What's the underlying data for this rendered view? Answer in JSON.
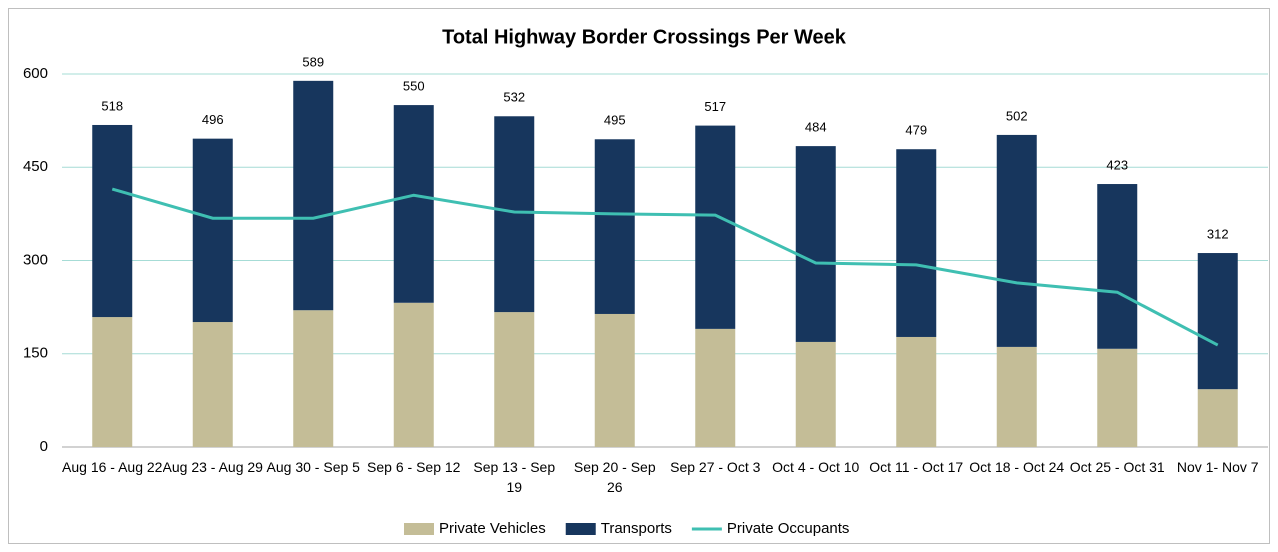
{
  "chart_data": {
    "type": "stacked-bar-line",
    "title": "Total Highway Border Crossings Per Week",
    "categories": [
      "Aug 16 - Aug 22",
      "Aug 23 - Aug 29",
      "Aug 30 - Sep 5",
      "Sep 6 - Sep 12",
      "Sep 13 - Sep 19",
      "Sep 20 - Sep 26",
      "Sep 27 - Oct 3",
      "Oct 4 - Oct 10",
      "Oct 11 - Oct 17",
      "Oct 18 - Oct 24",
      "Oct 25 - Oct 31",
      "Nov 1- Nov 7"
    ],
    "series": [
      {
        "name": "Private Vehicles",
        "type": "bar",
        "color": "#c4bd97",
        "values": [
          209,
          201,
          220,
          232,
          217,
          214,
          190,
          169,
          177,
          161,
          158,
          93
        ]
      },
      {
        "name": "Transports",
        "type": "bar",
        "color": "#17365d",
        "values": [
          309,
          295,
          369,
          318,
          315,
          281,
          327,
          315,
          302,
          341,
          265,
          219
        ]
      },
      {
        "name": "Private Occupants",
        "type": "line",
        "color": "#3fbfb2",
        "values": [
          415,
          368,
          368,
          405,
          378,
          375,
          373,
          296,
          293,
          264,
          249,
          164
        ]
      }
    ],
    "totals": [
      518,
      496,
      589,
      550,
      532,
      495,
      517,
      484,
      479,
      502,
      423,
      312
    ],
    "ylim": [
      0,
      600
    ],
    "yticks": [
      0,
      150,
      300,
      450,
      600
    ],
    "grid": true,
    "legend": "bottom"
  }
}
